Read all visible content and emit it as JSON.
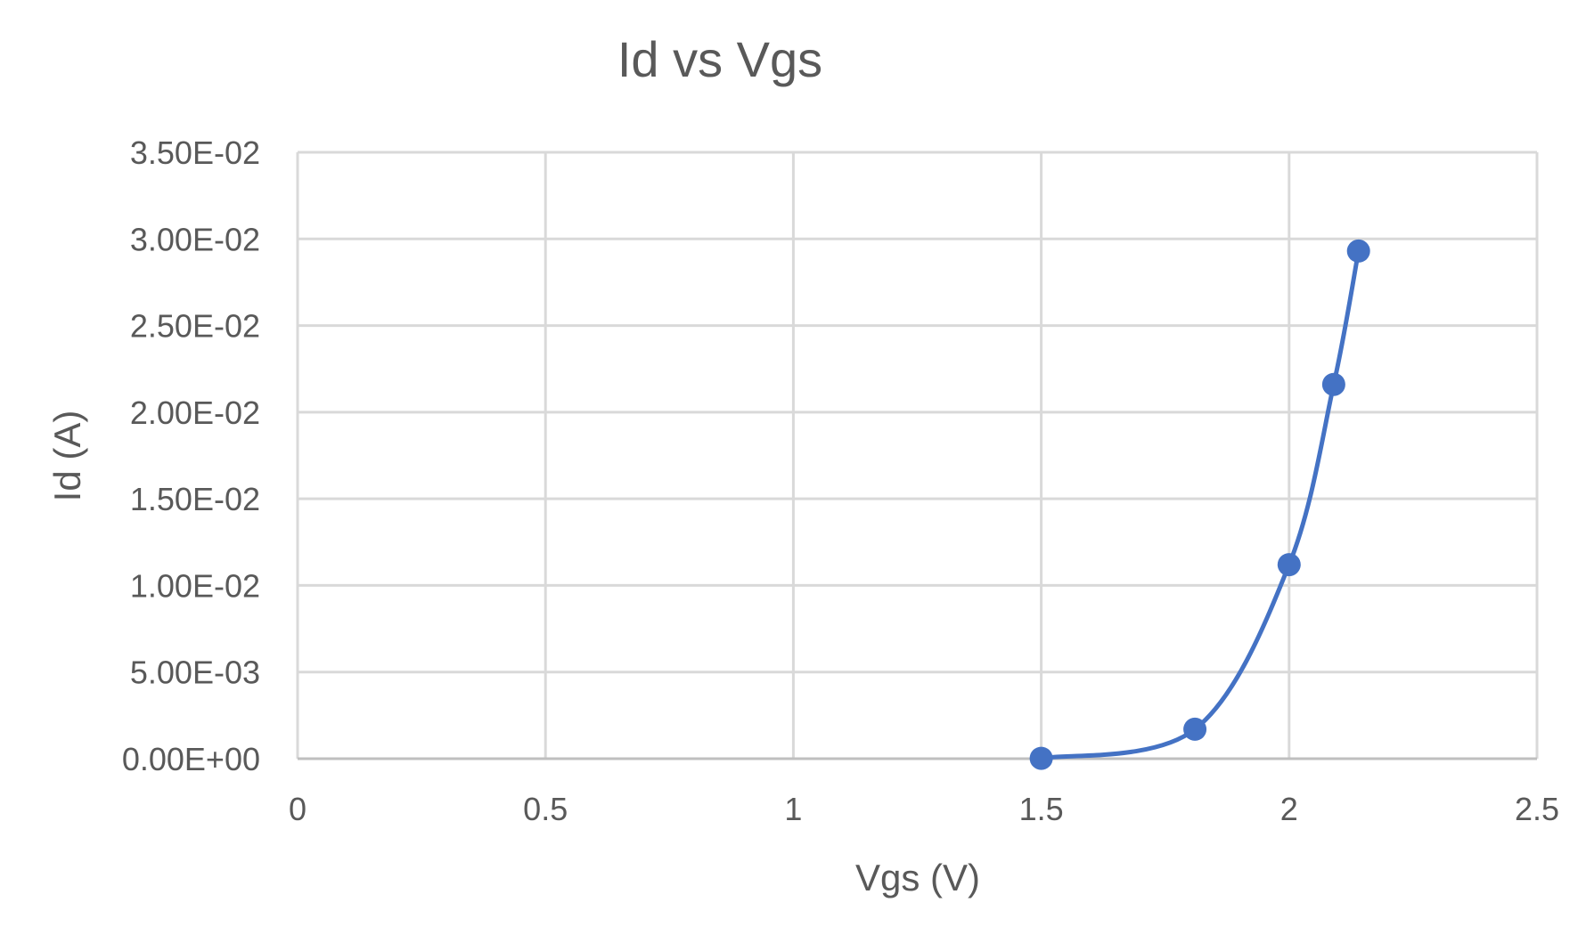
{
  "chart_data": {
    "type": "scatter",
    "title": "Id vs Vgs",
    "xlabel": "Vgs (V)",
    "ylabel": "Id (A)",
    "xlim": [
      0,
      2.5
    ],
    "ylim": [
      0,
      0.035
    ],
    "x_ticks": [
      "0",
      "0.5",
      "1",
      "1.5",
      "2",
      "2.5"
    ],
    "y_ticks": [
      "0.00E+00",
      "5.00E-03",
      "1.00E-02",
      "1.50E-02",
      "2.00E-02",
      "2.50E-02",
      "3.00E-02",
      "3.50E-02"
    ],
    "grid": true,
    "legend": "none",
    "smooth": true,
    "color": "#4472C4",
    "series": [
      {
        "x": [
          1.5,
          1.81,
          2.0,
          2.09,
          2.14
        ],
        "y": [
          2e-05,
          0.0017,
          0.0112,
          0.0216,
          0.0293
        ]
      }
    ]
  }
}
